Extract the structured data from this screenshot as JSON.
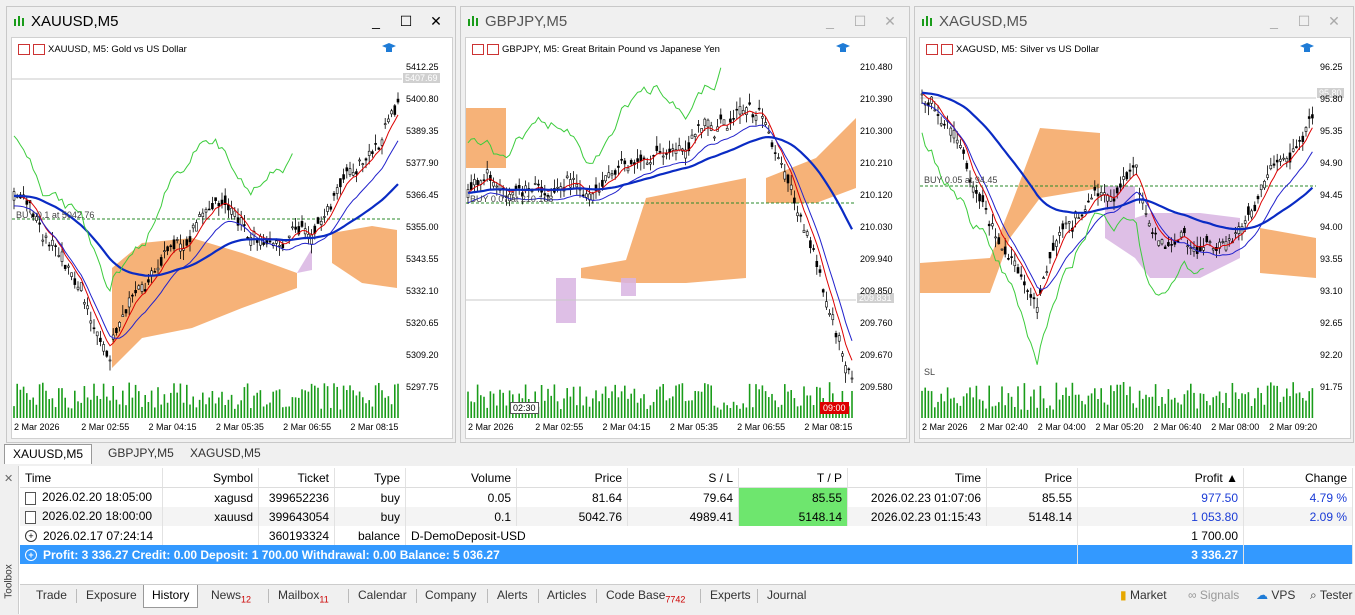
{
  "windows": [
    {
      "title": "XAUUSD,M5",
      "caption": "XAUUSD, M5:  Gold vs US Dollar",
      "active": true,
      "yticks": [
        "5412.25",
        "5400.80",
        "5389.35",
        "5377.90",
        "5366.45",
        "5355.00",
        "5343.55",
        "5332.10",
        "5320.65",
        "5309.20",
        "5297.75"
      ],
      "price_tag": "5407.69",
      "trade_label": "BUY 0.1 at 5042.76",
      "xticks": [
        "2 Mar 2026",
        "2 Mar 02:55",
        "2 Mar 04:15",
        "2 Mar 05:35",
        "2 Mar 06:55",
        "2 Mar 08:15"
      ]
    },
    {
      "title": "GBPJPY,M5",
      "caption": "GBPJPY, M5:  Great Britain Pound vs Japanese Yen",
      "active": false,
      "yticks": [
        "210.480",
        "210.390",
        "210.300",
        "210.210",
        "210.120",
        "210.030",
        "209.940",
        "209.850",
        "209.760",
        "209.670",
        "209.580"
      ],
      "price_tag": "209.831",
      "trade_label": "BUY 0.07 at 210.108",
      "time_start": "02:30",
      "time_end": "09:00",
      "xticks": [
        "2 Mar 2026",
        "2 Mar 02:55",
        "2 Mar 04:15",
        "2 Mar 05:35",
        "2 Mar 06:55",
        "2 Mar 08:15"
      ]
    },
    {
      "title": "XAGUSD,M5",
      "caption": "XAGUSD, M5:  Silver vs US Dollar",
      "active": false,
      "yticks": [
        "96.25",
        "95.80",
        "95.35",
        "94.90",
        "94.45",
        "94.00",
        "93.55",
        "93.10",
        "92.65",
        "92.20",
        "91.75"
      ],
      "price_tag": "95.80",
      "trade_label": "BUY 0.05 at 94.45",
      "sl_label": "SL",
      "xticks": [
        "2 Mar 2026",
        "2 Mar 02:40",
        "2 Mar 04:00",
        "2 Mar 05:20",
        "2 Mar 06:40",
        "2 Mar 08:00",
        "2 Mar 09:20"
      ]
    }
  ],
  "chart_tabs": [
    "XAUUSD,M5",
    "GBPJPY,M5",
    "XAGUSD,M5"
  ],
  "history": {
    "headers": [
      "Time",
      "Symbol",
      "Ticket",
      "Type",
      "Volume",
      "Price",
      "S / L",
      "T / P",
      "Time",
      "Price",
      "Profit",
      "Change"
    ],
    "rows": [
      {
        "time": "2026.02.20 18:05:00",
        "symbol": "xagusd",
        "ticket": "399652236",
        "type": "buy",
        "volume": "0.05",
        "price": "81.64",
        "sl": "79.64",
        "tp": "85.55",
        "time2": "2026.02.23 01:07:06",
        "price2": "85.55",
        "profit": "977.50",
        "change": "4.79 %"
      },
      {
        "time": "2026.02.20 18:00:00",
        "symbol": "xauusd",
        "ticket": "399643054",
        "type": "buy",
        "volume": "0.1",
        "price": "5042.76",
        "sl": "4989.41",
        "tp": "5148.14",
        "time2": "2026.02.23 01:15:43",
        "price2": "5148.14",
        "profit": "1 053.80",
        "change": "2.09 %"
      }
    ],
    "balance_row": {
      "time": "2026.02.17 07:24:14",
      "ticket": "360193324",
      "type": "balance",
      "comment": "D-DemoDeposit-USD",
      "profit": "1 700.00"
    },
    "summary": {
      "text": "Profit: 3 336.27  Credit: 0.00  Deposit: 1 700.00  Withdrawal: 0.00  Balance: 5 036.27",
      "profit": "3 336.27"
    }
  },
  "toolbox_label": "Toolbox",
  "bottom_tabs": [
    {
      "label": "Trade"
    },
    {
      "label": "Exposure"
    },
    {
      "label": "History",
      "active": true
    },
    {
      "label": "News",
      "badge": "12"
    },
    {
      "label": "Mailbox",
      "badge": "11"
    },
    {
      "label": "Calendar"
    },
    {
      "label": "Company"
    },
    {
      "label": "Alerts"
    },
    {
      "label": "Articles"
    },
    {
      "label": "Code Base",
      "badge": "7742"
    },
    {
      "label": "Experts"
    },
    {
      "label": "Journal"
    }
  ],
  "right_tabs": [
    {
      "label": "Market"
    },
    {
      "label": "Signals"
    },
    {
      "label": "VPS"
    },
    {
      "label": "Tester"
    }
  ],
  "colors": {
    "accent": "#3399ff",
    "ichimoku": "#f4a460",
    "cloud2": "#d8b4e2",
    "tp_green": "#6ee66e",
    "profit_blue": "#1a3bd6"
  }
}
